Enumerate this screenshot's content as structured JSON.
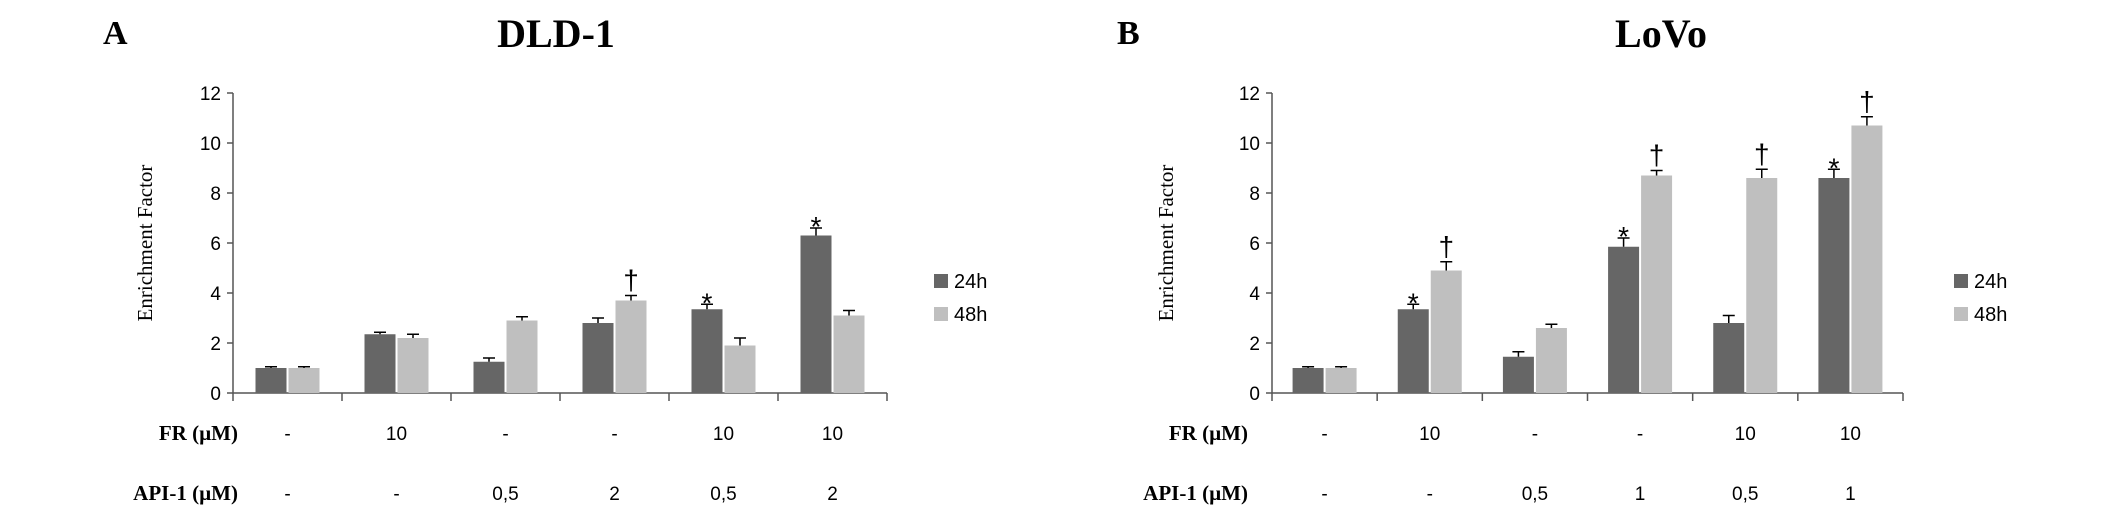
{
  "chart_data": [
    {
      "type": "bar",
      "panel_letter": "A",
      "title": "DLD-1",
      "ylabel": "Enrichment Factor",
      "ylim": [
        0,
        12
      ],
      "yticks": [
        "0",
        "2",
        "4",
        "6",
        "8",
        "10",
        "12"
      ],
      "grid": false,
      "legend_position": "right",
      "colors": {
        "24h": "#666666",
        "48h": "#bfbfbf"
      },
      "row_labels": [
        "FR (µM)",
        "API-1 (µM)"
      ],
      "conditions": [
        {
          "fr": "-",
          "api1": "-"
        },
        {
          "fr": "10",
          "api1": "-"
        },
        {
          "fr": "-",
          "api1": "0,5"
        },
        {
          "fr": "-",
          "api1": "2"
        },
        {
          "fr": "10",
          "api1": "0,5"
        },
        {
          "fr": "10",
          "api1": "2"
        }
      ],
      "series": [
        {
          "name": "24h",
          "values": [
            1.0,
            2.35,
            1.25,
            2.8,
            3.35,
            6.3
          ],
          "errors": [
            0.05,
            0.08,
            0.15,
            0.2,
            0.2,
            0.3
          ],
          "markers": [
            "",
            "",
            "",
            "",
            "*",
            "*"
          ]
        },
        {
          "name": "48h",
          "values": [
            1.0,
            2.2,
            2.9,
            3.7,
            1.9,
            3.1
          ],
          "errors": [
            0.05,
            0.15,
            0.15,
            0.2,
            0.3,
            0.2
          ],
          "markers": [
            "",
            "",
            "",
            "†",
            "",
            ""
          ]
        }
      ]
    },
    {
      "type": "bar",
      "panel_letter": "B",
      "title": "LoVo",
      "ylabel": "Enrichment Factor",
      "ylim": [
        0,
        12
      ],
      "yticks": [
        "0",
        "2",
        "4",
        "6",
        "8",
        "10",
        "12"
      ],
      "grid": false,
      "legend_position": "right",
      "colors": {
        "24h": "#666666",
        "48h": "#bfbfbf"
      },
      "row_labels": [
        "FR (µM)",
        "API-1 (µM)"
      ],
      "conditions": [
        {
          "fr": "-",
          "api1": "-"
        },
        {
          "fr": "10",
          "api1": "-"
        },
        {
          "fr": "-",
          "api1": "0,5"
        },
        {
          "fr": "-",
          "api1": "1"
        },
        {
          "fr": "10",
          "api1": "0,5"
        },
        {
          "fr": "10",
          "api1": "1"
        }
      ],
      "series": [
        {
          "name": "24h",
          "values": [
            1.0,
            3.35,
            1.45,
            5.85,
            2.8,
            8.6
          ],
          "errors": [
            0.05,
            0.2,
            0.2,
            0.35,
            0.3,
            0.35
          ],
          "markers": [
            "",
            "*",
            "",
            "*",
            "",
            "*"
          ]
        },
        {
          "name": "48h",
          "values": [
            1.0,
            4.9,
            2.6,
            8.7,
            8.6,
            10.7
          ],
          "errors": [
            0.05,
            0.35,
            0.15,
            0.2,
            0.35,
            0.35
          ],
          "markers": [
            "",
            "†",
            "",
            "†",
            "†",
            "†"
          ]
        }
      ]
    }
  ]
}
